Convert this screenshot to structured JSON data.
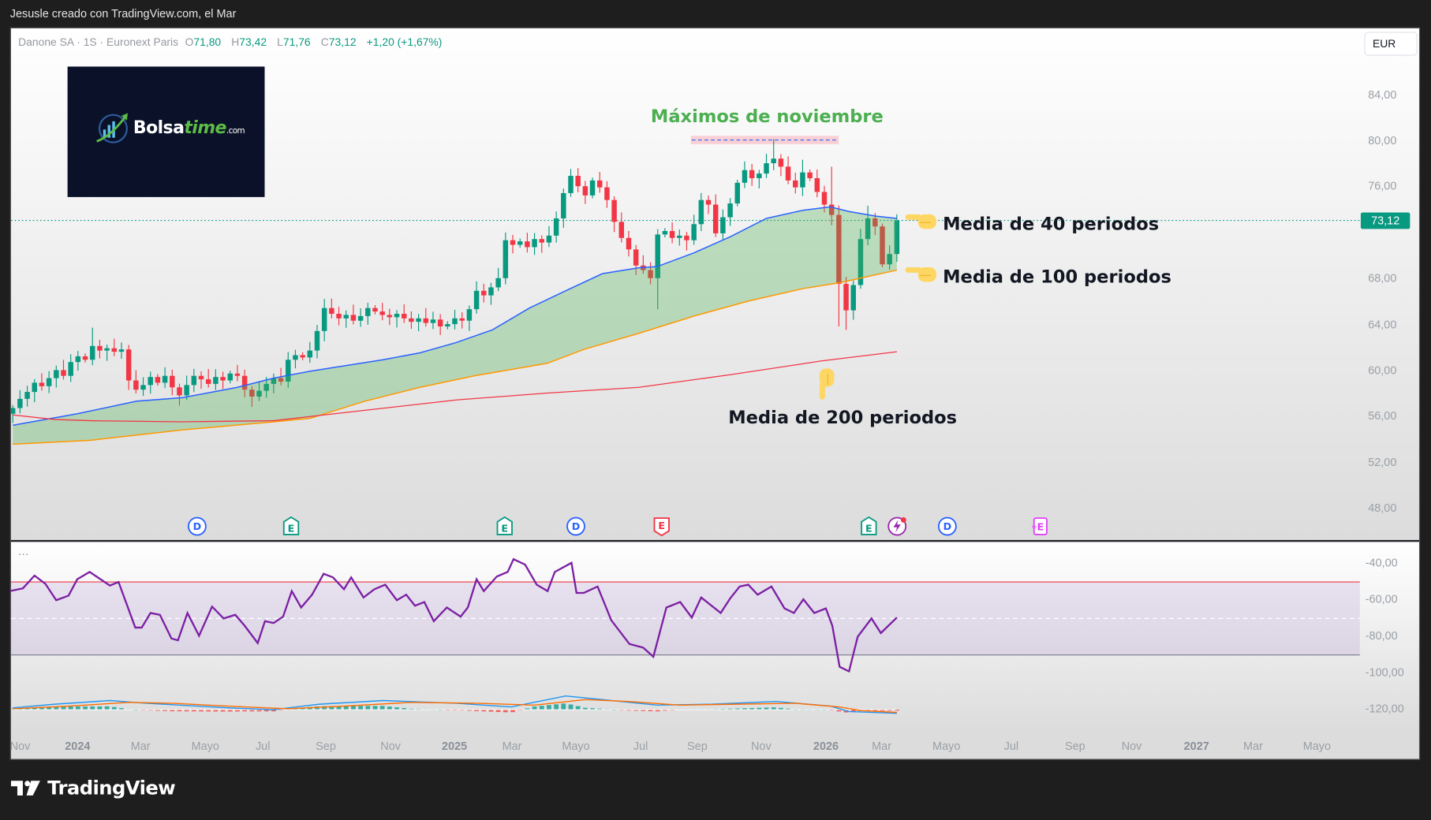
{
  "topbar": {
    "caption": "Jesusle creado con TradingView.com, el Mar"
  },
  "legend": {
    "symbol": "Danone SA · 1S · Euronext Paris",
    "o_label": "O",
    "o": "71,80",
    "h_label": "H",
    "h": "73,42",
    "l_label": "L",
    "l": "71,76",
    "c_label": "C",
    "c": "73,12",
    "change": "+1,20 (+1,67%)"
  },
  "currency_button": "EUR",
  "logo": {
    "brand": "Bolsa",
    "brand2": "time",
    "suffix": ".com"
  },
  "annotations": {
    "max_nov": "Máximos de noviembre",
    "ma40": "Media de 40 periodos",
    "ma100": "Media de 100 periodos",
    "ma200": "Media de 200 periodos"
  },
  "indicator_menu": "···",
  "footer_logo": "TradingView",
  "colors": {
    "up": "#089981",
    "down": "#f23645",
    "ma40": "#2962ff",
    "ma100": "#ff9800",
    "ma200": "#f23645",
    "fill": "#4caf50",
    "rsi": "#7b1fa2",
    "title_green": "#4caf50"
  },
  "events": [
    {
      "type": "D",
      "color": "#2962ff",
      "week": 25.5
    },
    {
      "type": "E",
      "color": "#089981",
      "week": 38.4
    },
    {
      "type": "E",
      "color": "#089981",
      "week": 67.9
    },
    {
      "type": "D",
      "color": "#2962ff",
      "week": 77.7
    },
    {
      "type": "E",
      "color": "#f23645",
      "week": 89.6
    },
    {
      "type": "E",
      "color": "#089981",
      "week": 118.1
    },
    {
      "type": "S",
      "color": "#9c27b0",
      "week": 122
    },
    {
      "type": "D",
      "color": "#2962ff",
      "week": 129
    },
    {
      "type": "E2",
      "color": "#e040fb",
      "week": 141.6
    }
  ],
  "chart_data": {
    "type": "candlestick",
    "title": "Danone SA · 1S · Euronext Paris",
    "currency": "EUR",
    "last_price": "73,12",
    "price_axis": {
      "range": [
        46,
        86
      ],
      "ticks": [
        "84,00",
        "80,00",
        "76,00",
        "68,00",
        "64,00",
        "60,00",
        "56,00",
        "52,00",
        "48,00"
      ],
      "tick_values": [
        84,
        80,
        76,
        68,
        64,
        60,
        56,
        52,
        48
      ]
    },
    "time_axis": [
      "Nov",
      "2024",
      "Mar",
      "Mayo",
      "Jul",
      "Sep",
      "Nov",
      "2025",
      "Mar",
      "Mayo",
      "Jul",
      "Sep",
      "Nov",
      "2026",
      "Mar",
      "Mayo",
      "Jul",
      "Sep",
      "Nov",
      "2027",
      "Mar",
      "Mayo"
    ],
    "time_axis_years": [
      "2024",
      "2025",
      "2026",
      "2027"
    ],
    "first_open": 56.3,
    "closes": [
      56.8,
      57.6,
      58.2,
      59.0,
      58.7,
      59.4,
      60.1,
      59.6,
      60.8,
      61.3,
      61.0,
      62.2,
      61.8,
      62.0,
      61.7,
      61.9,
      59.2,
      58.4,
      58.8,
      59.5,
      59.0,
      59.6,
      58.6,
      57.9,
      58.8,
      59.6,
      59.3,
      58.9,
      59.5,
      59.2,
      59.8,
      59.6,
      58.4,
      57.8,
      58.3,
      58.9,
      59.4,
      59.1,
      61.0,
      61.4,
      61.2,
      61.8,
      63.5,
      65.5,
      65.0,
      64.6,
      64.9,
      64.4,
      64.8,
      65.5,
      65.2,
      64.9,
      64.7,
      65.0,
      64.6,
      64.3,
      64.6,
      64.2,
      64.5,
      63.9,
      64.1,
      64.6,
      64.4,
      65.4,
      67.0,
      66.6,
      67.3,
      68.1,
      71.4,
      71.0,
      71.3,
      70.8,
      71.5,
      71.2,
      71.8,
      73.3,
      75.5,
      77.0,
      76.1,
      75.3,
      76.6,
      76.0,
      74.9,
      73.0,
      71.6,
      70.6,
      69.2,
      68.8,
      68.1,
      71.9,
      72.2,
      71.6,
      71.8,
      71.4,
      72.8,
      74.9,
      74.5,
      72.0,
      73.4,
      74.6,
      76.4,
      77.5,
      76.8,
      77.2,
      78.1,
      78.5,
      77.8,
      76.6,
      76.0,
      77.3,
      76.8,
      75.6,
      74.5,
      73.6,
      67.6,
      65.3,
      67.5,
      71.5,
      73.3,
      72.6,
      69.3,
      70.2,
      73.12
    ],
    "wick_extremes": {
      "high": {
        "11": 63.8,
        "43": 66.3,
        "77": 77.6,
        "105": 80.2,
        "109": 78.4,
        "113": 77.8,
        "118": 74.4
      },
      "low": {
        "89": 65.4,
        "114": 63.9,
        "115": 63.6,
        "0": 55.5
      }
    },
    "ma40": [
      [
        0,
        55.3
      ],
      [
        8.9,
        56.3
      ],
      [
        17.1,
        57.4
      ],
      [
        23.4,
        57.7
      ],
      [
        31,
        58.6
      ],
      [
        36,
        59.4
      ],
      [
        41,
        60
      ],
      [
        51.1,
        61
      ],
      [
        56.2,
        61.6
      ],
      [
        61.2,
        62.5
      ],
      [
        66.2,
        63.6
      ],
      [
        71.3,
        65.5
      ],
      [
        76.3,
        67
      ],
      [
        81.4,
        68.5
      ],
      [
        86.4,
        69
      ],
      [
        88.9,
        69.1
      ],
      [
        94,
        70.3
      ],
      [
        99,
        71.7
      ],
      [
        104,
        73.3
      ],
      [
        109,
        74
      ],
      [
        112.8,
        74.3
      ],
      [
        115.4,
        73.9
      ],
      [
        119.1,
        73.5
      ],
      [
        122,
        73.3
      ]
    ],
    "ma100": [
      [
        0,
        53.65
      ],
      [
        10.8,
        54
      ],
      [
        23.4,
        54.9
      ],
      [
        36,
        55.6
      ],
      [
        41,
        55.9
      ],
      [
        48.6,
        57.4
      ],
      [
        56.2,
        58.6
      ],
      [
        63.7,
        59.6
      ],
      [
        73.8,
        60.7
      ],
      [
        78.8,
        61.9
      ],
      [
        86.4,
        63.3
      ],
      [
        94,
        64.8
      ],
      [
        101.5,
        66.1
      ],
      [
        109.1,
        67.2
      ],
      [
        114.1,
        67.7
      ],
      [
        122,
        68.8
      ]
    ],
    "ma200": [
      [
        0,
        56.2
      ],
      [
        5.8,
        55.8
      ],
      [
        10.8,
        55.7
      ],
      [
        23.4,
        55.6
      ],
      [
        36,
        55.7
      ],
      [
        48.6,
        56.6
      ],
      [
        61.2,
        57.5
      ],
      [
        73.8,
        58.1
      ],
      [
        86.4,
        58.6
      ],
      [
        99,
        59.7
      ],
      [
        111.6,
        60.9
      ],
      [
        122,
        61.7
      ]
    ],
    "indicator": {
      "axis_ticks": [
        "-40,00",
        "-60,00",
        "-80,00",
        "-100,00",
        "-120,00"
      ],
      "axis_values": [
        -40,
        -60,
        -80,
        -100,
        -120
      ],
      "band": [
        -90,
        -50
      ],
      "midline": -70,
      "line": [
        [
          -0.4,
          -55
        ],
        [
          1.4,
          -53.5
        ],
        [
          3,
          -46.5
        ],
        [
          4.5,
          -51
        ],
        [
          6,
          -60
        ],
        [
          7.7,
          -57.5
        ],
        [
          8.9,
          -48.5
        ],
        [
          10.6,
          -44.5
        ],
        [
          12.1,
          -48.5
        ],
        [
          13.4,
          -52
        ],
        [
          14.6,
          -50
        ],
        [
          16.9,
          -75
        ],
        [
          17.8,
          -75
        ],
        [
          19,
          -67
        ],
        [
          20.3,
          -68
        ],
        [
          21.9,
          -81
        ],
        [
          22.8,
          -82
        ],
        [
          24.1,
          -67
        ],
        [
          25.7,
          -79.5
        ],
        [
          27.5,
          -63.5
        ],
        [
          29.1,
          -70
        ],
        [
          30.7,
          -68
        ],
        [
          32,
          -74
        ],
        [
          33.8,
          -83.5
        ],
        [
          34.8,
          -71.5
        ],
        [
          36,
          -72.5
        ],
        [
          37.3,
          -69
        ],
        [
          38.5,
          -55
        ],
        [
          39.8,
          -64
        ],
        [
          41.3,
          -57
        ],
        [
          42.9,
          -45.5
        ],
        [
          44.2,
          -47.5
        ],
        [
          45.7,
          -54
        ],
        [
          46.7,
          -47.5
        ],
        [
          48.4,
          -58.5
        ],
        [
          49.9,
          -54
        ],
        [
          51.4,
          -51.5
        ],
        [
          53,
          -60
        ],
        [
          54.3,
          -57
        ],
        [
          55.5,
          -63
        ],
        [
          56.8,
          -61
        ],
        [
          58.1,
          -71.5
        ],
        [
          59.9,
          -64
        ],
        [
          61.8,
          -69
        ],
        [
          62.8,
          -64
        ],
        [
          64,
          -48.5
        ],
        [
          65,
          -55
        ],
        [
          66.8,
          -47
        ],
        [
          68.3,
          -44.5
        ],
        [
          69.1,
          -37.5
        ],
        [
          70.7,
          -40.5
        ],
        [
          72.3,
          -51.5
        ],
        [
          73.8,
          -55
        ],
        [
          74.8,
          -44.5
        ],
        [
          77.1,
          -39.5
        ],
        [
          77.8,
          -56
        ],
        [
          78.8,
          -56
        ],
        [
          80.7,
          -52.5
        ],
        [
          82.6,
          -71
        ],
        [
          85.1,
          -84
        ],
        [
          87,
          -86
        ],
        [
          88.4,
          -91
        ],
        [
          90.2,
          -64
        ],
        [
          92.1,
          -61
        ],
        [
          93.7,
          -69.5
        ],
        [
          95,
          -58.5
        ],
        [
          97.7,
          -67
        ],
        [
          99,
          -59
        ],
        [
          100.3,
          -52.5
        ],
        [
          101.5,
          -51.5
        ],
        [
          102.8,
          -57
        ],
        [
          104.7,
          -52.5
        ],
        [
          106.5,
          -64.5
        ],
        [
          107.8,
          -67
        ],
        [
          109.1,
          -59.5
        ],
        [
          110.6,
          -67
        ],
        [
          112.2,
          -64.5
        ],
        [
          113.1,
          -74
        ],
        [
          114.1,
          -96.5
        ],
        [
          115.4,
          -99
        ],
        [
          116.6,
          -80
        ],
        [
          118.5,
          -70
        ],
        [
          119.8,
          -78
        ],
        [
          122,
          -69.5
        ]
      ],
      "macd": [
        [
          0,
          -119
        ],
        [
          5.8,
          -117
        ],
        [
          13.4,
          -115
        ],
        [
          18.4,
          -116.5
        ],
        [
          29.7,
          -119
        ],
        [
          36,
          -120
        ],
        [
          42.3,
          -117
        ],
        [
          51.1,
          -115
        ],
        [
          61.2,
          -116.5
        ],
        [
          68.8,
          -118.5
        ],
        [
          76.3,
          -112.5
        ],
        [
          81.4,
          -114.5
        ],
        [
          88.9,
          -117.5
        ],
        [
          96.5,
          -117
        ],
        [
          105.3,
          -115.5
        ],
        [
          112.8,
          -118
        ],
        [
          115.4,
          -121
        ],
        [
          122,
          -122
        ]
      ],
      "signal": [
        [
          0,
          -119.5
        ],
        [
          8,
          -118
        ],
        [
          16,
          -116
        ],
        [
          22,
          -116.5
        ],
        [
          32,
          -118.5
        ],
        [
          38,
          -119.5
        ],
        [
          46,
          -118
        ],
        [
          55,
          -116
        ],
        [
          64,
          -116.5
        ],
        [
          72,
          -117.5
        ],
        [
          79,
          -114.5
        ],
        [
          85,
          -115.5
        ],
        [
          92,
          -117.5
        ],
        [
          100,
          -117
        ],
        [
          108,
          -116.5
        ],
        [
          114,
          -118.5
        ],
        [
          117,
          -120.5
        ],
        [
          122,
          -121.5
        ]
      ],
      "zero": -120
    }
  }
}
